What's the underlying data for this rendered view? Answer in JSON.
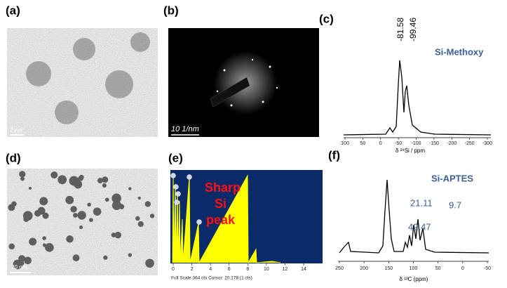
{
  "panels": [
    {
      "label": "(a)",
      "scale_bar": "2 nm"
    },
    {
      "label": "(b)",
      "scale_bar": "10 1/nm"
    },
    {
      "label": "(c)",
      "title": "Si-Methoxy",
      "peak_labels": [
        "-81.58",
        "-99.46"
      ],
      "xticks": [
        "100",
        "50",
        "0",
        "-50",
        "-100",
        "-150",
        "-200",
        "-250",
        "-300"
      ],
      "xlabel": "δ ²⁹Si / ppm"
    },
    {
      "label": "(d)",
      "scale_bar": "20 nm"
    },
    {
      "label": "(e)",
      "annotation": [
        "Sharp",
        "Si",
        "peak"
      ],
      "xticks": [
        "0",
        "2",
        "4",
        "6",
        "8",
        "10",
        "12",
        "14"
      ],
      "footer": "Full Scale 364 cts Cursor: 20.178 (1 cts)"
    },
    {
      "label": "(f)",
      "title": "Si-APTES",
      "peak_labels": [
        "21.11",
        "42.47",
        "9.7"
      ],
      "xticks": [
        "250",
        "200",
        "150",
        "100",
        "50",
        "0",
        "-50"
      ],
      "xlabel": "δ ¹³C (ppm)"
    }
  ]
}
